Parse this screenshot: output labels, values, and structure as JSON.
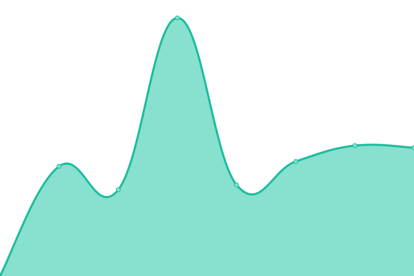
{
  "chart_data": {
    "type": "area",
    "title": "",
    "xlabel": "",
    "ylabel": "",
    "x": [
      0,
      1,
      2,
      3,
      4,
      5,
      6,
      7
    ],
    "values": [
      0,
      159,
      125,
      374,
      132,
      166,
      189,
      186
    ],
    "ylim": [
      0,
      400
    ],
    "grid": false,
    "smooth": true,
    "colors": {
      "fill": "#88e0cf",
      "line": "#1abc9c",
      "marker_fill": "#88e0cf",
      "marker_stroke": "#1abc9c"
    }
  }
}
